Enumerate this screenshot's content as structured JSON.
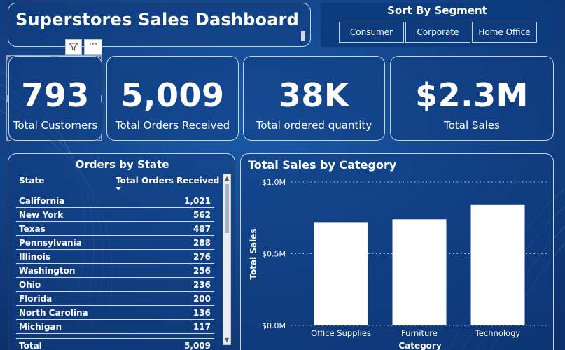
{
  "title": "Superstores Sales Dashboard",
  "segment": {
    "title": "Sort By Segment",
    "options": [
      "Consumer",
      "Corporate",
      "Home Office"
    ]
  },
  "kpis": [
    {
      "value": "793",
      "label": "Total Customers"
    },
    {
      "value": "5,009",
      "label": "Total Orders Received"
    },
    {
      "value": "38K",
      "label": "Total ordered quantity"
    },
    {
      "value": "$2.3M",
      "label": "Total Sales"
    }
  ],
  "visual_header": {
    "filter_icon": "filter-icon",
    "more_icon": "more-options-icon",
    "more_label": "⋯"
  },
  "orders_table": {
    "title": "Orders by State",
    "columns": [
      "State",
      "Total Orders Received"
    ],
    "rows": [
      [
        "California",
        "1,021"
      ],
      [
        "New York",
        "562"
      ],
      [
        "Texas",
        "487"
      ],
      [
        "Pennsylvania",
        "288"
      ],
      [
        "Illinois",
        "276"
      ],
      [
        "Washington",
        "256"
      ],
      [
        "Ohio",
        "236"
      ],
      [
        "Florida",
        "200"
      ],
      [
        "North Carolina",
        "136"
      ],
      [
        "Michigan",
        "117"
      ]
    ],
    "total": [
      "Total",
      "5,009"
    ]
  },
  "chart_data": {
    "type": "bar",
    "title": "Total Sales by Category",
    "xlabel": "Category",
    "ylabel": "Total Sales",
    "categories": [
      "Office Supplies",
      "Furniture",
      "Technology"
    ],
    "values": [
      0.72,
      0.74,
      0.84
    ],
    "unit": "$M",
    "ylim": [
      0,
      1.0
    ],
    "ticks": [
      {
        "value": 1.0,
        "label": "$1.0M"
      },
      {
        "value": 0.5,
        "label": "$0.5M"
      },
      {
        "value": 0.0,
        "label": "$0.0M"
      }
    ],
    "grid": true,
    "bar_color": "#ffffff"
  },
  "colors": {
    "background": "#0f3f84",
    "panel_border": "#c7d3e6",
    "text": "#ffffff"
  }
}
